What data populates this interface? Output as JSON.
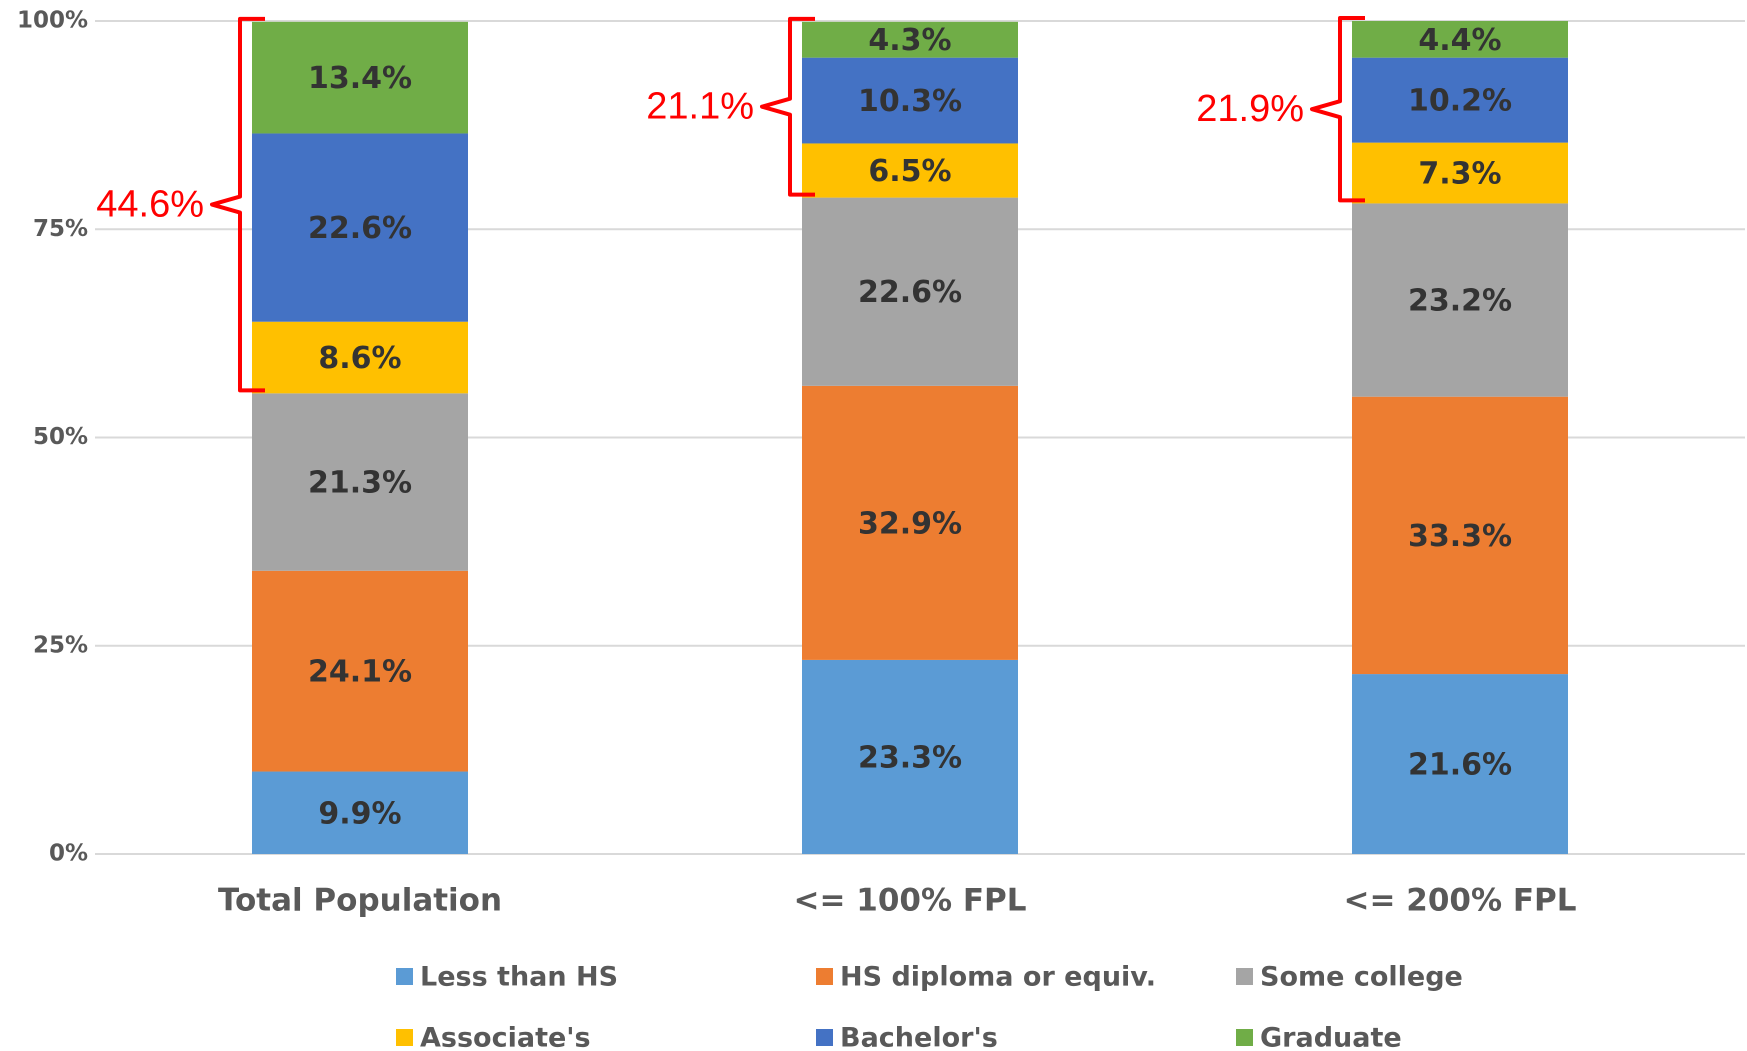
{
  "chart_data": {
    "type": "stacked_bar",
    "categories": [
      "Total Population",
      "<= 100% FPL",
      "<= 200% FPL"
    ],
    "series": [
      {
        "name": "Less than HS",
        "color": "#5b9bd5",
        "values": [
          9.9,
          23.3,
          21.6
        ],
        "value_labels": [
          "9.9%",
          "23.3%",
          "21.6%"
        ]
      },
      {
        "name": "HS diploma or equiv.",
        "color": "#ed7d31",
        "values": [
          24.1,
          32.9,
          33.3
        ],
        "value_labels": [
          "24.1%",
          "32.9%",
          "33.3%"
        ]
      },
      {
        "name": "Some college",
        "color": "#a5a5a5",
        "values": [
          21.3,
          22.6,
          23.2
        ],
        "value_labels": [
          "21.3%",
          "22.6%",
          "23.2%"
        ]
      },
      {
        "name": "Associate's",
        "color": "#ffc000",
        "values": [
          8.6,
          6.5,
          7.3
        ],
        "value_labels": [
          "8.6%",
          "6.5%",
          "7.3%"
        ]
      },
      {
        "name": "Bachelor's",
        "color": "#4472c4",
        "values": [
          22.6,
          10.3,
          10.2
        ],
        "value_labels": [
          "22.6%",
          "10.3%",
          "10.2%"
        ]
      },
      {
        "name": "Graduate",
        "color": "#70ad47",
        "values": [
          13.4,
          4.3,
          4.4
        ],
        "value_labels": [
          "13.4%",
          "4.3%",
          "4.4%"
        ]
      }
    ],
    "ylim": [
      0,
      100
    ],
    "yticks": [
      {
        "value": 0,
        "label": "0%"
      },
      {
        "value": 25,
        "label": "25%"
      },
      {
        "value": 50,
        "label": "50%"
      },
      {
        "value": 75,
        "label": "75%"
      },
      {
        "value": 100,
        "label": "100%"
      }
    ],
    "grid": true,
    "legend": "bottom",
    "annotations": [
      {
        "text": "44.6%",
        "value": 44.6,
        "category": 0,
        "color": "#ff0000"
      },
      {
        "text": "21.1%",
        "value": 21.1,
        "category": 1,
        "color": "#ff0000"
      },
      {
        "text": "21.9%",
        "value": 21.9,
        "category": 2,
        "color": "#ff0000"
      }
    ]
  }
}
